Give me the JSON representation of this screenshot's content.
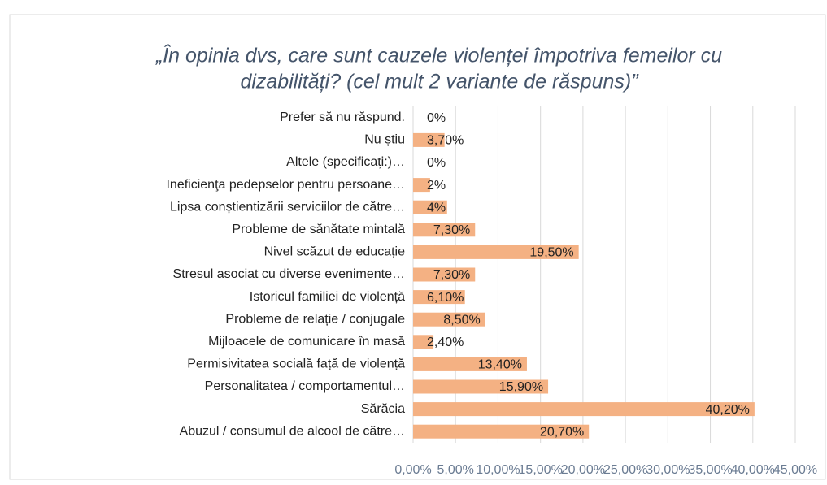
{
  "chart_data": {
    "type": "barh",
    "title": [
      "„În opinia dvs, care sunt cauzele violenței împotriva femeilor cu",
      "dizabilități? (cel mult 2 variante de răspuns)”"
    ],
    "categories": [
      "Prefer să nu răspund.",
      "Nu știu",
      "Altele (specificați:)…",
      "Ineficienţa pedepselor pentru persoane…",
      "Lipsa conștientizării serviciilor de către…",
      "Probleme de sănătate mintală",
      "Nivel scăzut de educație",
      "Stresul asociat cu diverse evenimente…",
      "Istoricul familiei de violență",
      "Probleme de relație / conjugale",
      "Mijloacele de comunicare în masă",
      "Permisivitatea socială față de violență",
      "Personalitatea / comportamentul…",
      "Sărăcia",
      "Abuzul / consumul de alcool de către…"
    ],
    "values": [
      0,
      3.7,
      0,
      2,
      4,
      7.3,
      19.5,
      7.3,
      6.1,
      8.5,
      2.4,
      13.4,
      15.9,
      40.2,
      20.7
    ],
    "value_labels": [
      "0%",
      "3,70%",
      "0%",
      "2%",
      "4%",
      "7,30%",
      "19,50%",
      "7,30%",
      "6,10%",
      "8,50%",
      "2,40%",
      "13,40%",
      "15,90%",
      "40,20%",
      "20,70%"
    ],
    "color": "#f4b183",
    "xlim": [
      0,
      45
    ],
    "xticks": [
      {
        "value": 0,
        "label": "0,00%"
      },
      {
        "value": 5,
        "label": "5,00%"
      },
      {
        "value": 10,
        "label": "10,00%"
      },
      {
        "value": 15,
        "label": "15,00%"
      },
      {
        "value": 20,
        "label": "20,00%"
      },
      {
        "value": 25,
        "label": "25,00%"
      },
      {
        "value": 30,
        "label": "30,00%"
      },
      {
        "value": 35,
        "label": "35,00%"
      },
      {
        "value": 40,
        "label": "40,00%"
      },
      {
        "value": 45,
        "label": "45,00%"
      }
    ],
    "grid": true
  }
}
